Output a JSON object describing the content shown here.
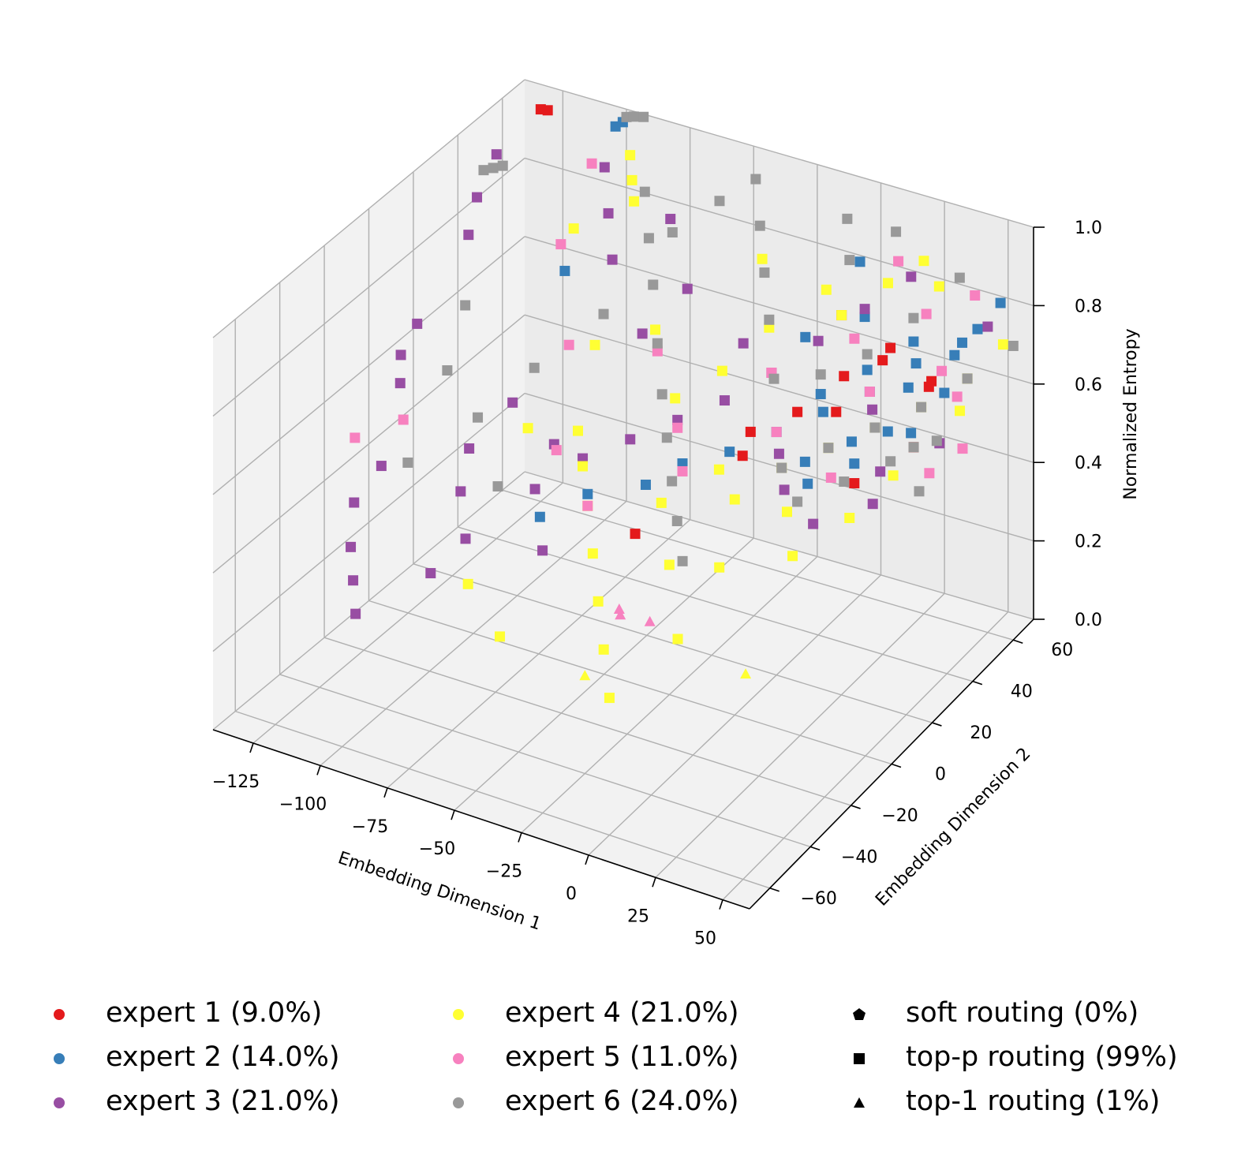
{
  "chart_data": {
    "type": "scatter",
    "projection": "3d",
    "xlabel": "Embedding Dimension 1",
    "ylabel": "Embedding Dimension 2",
    "zlabel": "Normalized Entropy",
    "x_ticks": [
      "−125",
      "−100",
      "−75",
      "−50",
      "−25",
      "0",
      "25",
      "50"
    ],
    "y_ticks": [
      "−60",
      "−40",
      "−20",
      "0",
      "20",
      "40",
      "60"
    ],
    "z_ticks": [
      "0.0",
      "0.2",
      "0.4",
      "0.6",
      "0.8",
      "1.0"
    ],
    "xlim": [
      -140,
      60
    ],
    "ylim": [
      -70,
      70
    ],
    "zlim": [
      0,
      1
    ],
    "grid": true,
    "series": [
      {
        "name": "expert 1 (9.0%)",
        "color": "#e41a1c",
        "points": [
          [
            -125,
            60,
            1.0
          ],
          [
            -124,
            62,
            0.99
          ],
          [
            35,
            50,
            0.65
          ],
          [
            40,
            45,
            0.7
          ],
          [
            20,
            50,
            0.72
          ],
          [
            10,
            40,
            0.68
          ],
          [
            0,
            30,
            0.62
          ],
          [
            -10,
            20,
            0.6
          ],
          [
            25,
            40,
            0.75
          ],
          [
            15,
            30,
            0.65
          ],
          [
            -30,
            -10,
            0.45
          ],
          [
            30,
            20,
            0.55
          ],
          [
            45,
            30,
            0.62
          ],
          [
            5,
            45,
            0.8
          ],
          [
            -5,
            10,
            0.6
          ]
        ]
      },
      {
        "name": "expert 2 (14.0%)",
        "color": "#377eb8",
        "points": [
          [
            -100,
            65,
            0.98
          ],
          [
            -98,
            66,
            0.99
          ],
          [
            -90,
            30,
            0.8
          ],
          [
            0,
            20,
            0.62
          ],
          [
            10,
            30,
            0.64
          ],
          [
            20,
            40,
            0.66
          ],
          [
            30,
            50,
            0.7
          ],
          [
            40,
            60,
            0.72
          ],
          [
            -20,
            0,
            0.6
          ],
          [
            -40,
            -20,
            0.58
          ],
          [
            5,
            35,
            0.65
          ],
          [
            15,
            45,
            0.68
          ],
          [
            25,
            55,
            0.72
          ],
          [
            35,
            40,
            0.7
          ],
          [
            45,
            50,
            0.75
          ],
          [
            -10,
            10,
            0.6
          ],
          [
            50,
            55,
            0.8
          ],
          [
            55,
            60,
            0.85
          ],
          [
            20,
            10,
            0.58
          ],
          [
            30,
            20,
            0.6
          ],
          [
            40,
            35,
            0.62
          ],
          [
            -30,
            -5,
            0.55
          ],
          [
            -50,
            -30,
            0.55
          ],
          [
            10,
            50,
            0.78
          ],
          [
            0,
            60,
            0.85
          ],
          [
            -5,
            40,
            0.75
          ],
          [
            15,
            15,
            0.6
          ],
          [
            25,
            25,
            0.62
          ],
          [
            35,
            30,
            0.64
          ],
          [
            45,
            45,
            0.68
          ]
        ]
      },
      {
        "name": "expert 3 (21.0%)",
        "color": "#984ea3",
        "points": [
          [
            -125,
            40,
            0.98
          ],
          [
            -124,
            30,
            0.92
          ],
          [
            -123,
            25,
            0.85
          ],
          [
            -130,
            10,
            0.68
          ],
          [
            -132,
            5,
            0.62
          ],
          [
            -128,
            0,
            0.58
          ],
          [
            -110,
            -30,
            0.55
          ],
          [
            -112,
            -40,
            0.5
          ],
          [
            -105,
            -50,
            0.45
          ],
          [
            -100,
            -55,
            0.4
          ],
          [
            -95,
            -60,
            0.35
          ],
          [
            -85,
            -20,
            0.6
          ],
          [
            -80,
            -30,
            0.55
          ],
          [
            -70,
            -40,
            0.5
          ],
          [
            -75,
            -50,
            0.45
          ],
          [
            -60,
            -20,
            0.55
          ],
          [
            -50,
            -10,
            0.6
          ],
          [
            -40,
            0,
            0.62
          ],
          [
            -30,
            10,
            0.64
          ],
          [
            -20,
            20,
            0.66
          ],
          [
            -10,
            30,
            0.7
          ],
          [
            0,
            40,
            0.75
          ],
          [
            10,
            50,
            0.8
          ],
          [
            20,
            60,
            0.85
          ],
          [
            -100,
            60,
            0.9
          ],
          [
            -90,
            50,
            0.85
          ],
          [
            -80,
            40,
            0.8
          ],
          [
            -70,
            55,
            0.85
          ],
          [
            50,
            60,
            0.78
          ],
          [
            40,
            20,
            0.6
          ],
          [
            30,
            0,
            0.55
          ],
          [
            45,
            10,
            0.58
          ],
          [
            55,
            30,
            0.65
          ],
          [
            -60,
            30,
            0.7
          ],
          [
            -55,
            45,
            0.75
          ],
          [
            -65,
            -5,
            0.58
          ],
          [
            -45,
            -35,
            0.5
          ],
          [
            -85,
            0,
            0.62
          ],
          [
            -25,
            35,
            0.72
          ],
          [
            5,
            15,
            0.6
          ],
          [
            15,
            5,
            0.58
          ],
          [
            25,
            35,
            0.65
          ]
        ]
      },
      {
        "name": "expert 4 (21.0%)",
        "color": "#ffff33",
        "points": [
          [
            -90,
            60,
            0.95
          ],
          [
            -85,
            55,
            0.92
          ],
          [
            -80,
            50,
            0.9
          ],
          [
            -95,
            40,
            0.85
          ],
          [
            -70,
            20,
            0.7
          ],
          [
            -60,
            0,
            0.6
          ],
          [
            -50,
            -10,
            0.58
          ],
          [
            -40,
            -20,
            0.55
          ],
          [
            -30,
            -30,
            0.5
          ],
          [
            -20,
            -40,
            0.45
          ],
          [
            -10,
            -50,
            0.4
          ],
          [
            0,
            -60,
            0.35
          ],
          [
            -65,
            -45,
            0.42
          ],
          [
            -45,
            -55,
            0.38
          ],
          [
            10,
            10,
            0.6
          ],
          [
            20,
            20,
            0.62
          ],
          [
            30,
            30,
            0.64
          ],
          [
            40,
            40,
            0.66
          ],
          [
            50,
            50,
            0.7
          ],
          [
            5,
            45,
            0.8
          ],
          [
            15,
            55,
            0.85
          ],
          [
            25,
            60,
            0.9
          ],
          [
            35,
            55,
            0.88
          ],
          [
            -15,
            35,
            0.78
          ],
          [
            -5,
            50,
            0.82
          ],
          [
            -25,
            25,
            0.7
          ],
          [
            -35,
            15,
            0.66
          ],
          [
            45,
            20,
            0.6
          ],
          [
            55,
            40,
            0.68
          ],
          [
            0,
            0,
            0.55
          ],
          [
            10,
            -20,
            0.5
          ],
          [
            -10,
            5,
            0.58
          ],
          [
            20,
            0,
            0.56
          ],
          [
            30,
            -10,
            0.52
          ],
          [
            -75,
            -5,
            0.6
          ],
          [
            -55,
            30,
            0.72
          ],
          [
            -30,
            50,
            0.85
          ],
          [
            60,
            55,
            0.78
          ],
          [
            10,
            -40,
            0.42
          ],
          [
            -5,
            -25,
            0.5
          ],
          [
            40,
            5,
            0.56
          ],
          [
            -20,
            -10,
            0.55
          ]
        ]
      },
      {
        "name": "expert 5 (11.0%)",
        "color": "#f781bf",
        "points": [
          [
            -105,
            60,
            0.9
          ],
          [
            -100,
            40,
            0.8
          ],
          [
            -110,
            -20,
            0.62
          ],
          [
            -120,
            -30,
            0.6
          ],
          [
            -80,
            20,
            0.68
          ],
          [
            -60,
            -10,
            0.6
          ],
          [
            -40,
            -20,
            0.55
          ],
          [
            -20,
            0,
            0.58
          ],
          [
            0,
            20,
            0.62
          ],
          [
            20,
            40,
            0.66
          ],
          [
            40,
            50,
            0.7
          ],
          [
            50,
            45,
            0.68
          ],
          [
            30,
            55,
            0.8
          ],
          [
            10,
            45,
            0.75
          ],
          [
            -10,
            30,
            0.7
          ],
          [
            -30,
            10,
            0.62
          ],
          [
            -50,
            25,
            0.7
          ],
          [
            55,
            25,
            0.6
          ],
          [
            60,
            35,
            0.62
          ],
          [
            45,
            60,
            0.85
          ],
          [
            25,
            15,
            0.58
          ],
          [
            15,
            60,
            0.88
          ]
        ]
      },
      {
        "name": "expert 6 (24.0%)",
        "color": "#999999",
        "points": [
          [
            -130,
            40,
            0.93
          ],
          [
            -128,
            42,
            0.93
          ],
          [
            -126,
            44,
            0.93
          ],
          [
            -100,
            70,
            0.98
          ],
          [
            -98,
            71,
            0.98
          ],
          [
            -95,
            72,
            0.98
          ],
          [
            -80,
            55,
            0.9
          ],
          [
            -70,
            45,
            0.85
          ],
          [
            -60,
            35,
            0.8
          ],
          [
            -50,
            25,
            0.72
          ],
          [
            -40,
            15,
            0.66
          ],
          [
            -30,
            5,
            0.62
          ],
          [
            -20,
            -5,
            0.58
          ],
          [
            -10,
            -15,
            0.55
          ],
          [
            0,
            -25,
            0.52
          ],
          [
            10,
            10,
            0.6
          ],
          [
            20,
            20,
            0.62
          ],
          [
            30,
            30,
            0.64
          ],
          [
            40,
            40,
            0.66
          ],
          [
            50,
            50,
            0.7
          ],
          [
            60,
            60,
            0.75
          ],
          [
            -90,
            -10,
            0.62
          ],
          [
            -100,
            -30,
            0.58
          ],
          [
            -85,
            10,
            0.66
          ],
          [
            -75,
            30,
            0.72
          ],
          [
            -65,
            50,
            0.85
          ],
          [
            -55,
            60,
            0.9
          ],
          [
            -45,
            65,
            0.95
          ],
          [
            -35,
            55,
            0.9
          ],
          [
            -25,
            45,
            0.85
          ],
          [
            -15,
            35,
            0.8
          ],
          [
            -5,
            25,
            0.72
          ],
          [
            5,
            35,
            0.7
          ],
          [
            15,
            45,
            0.72
          ],
          [
            25,
            55,
            0.78
          ],
          [
            35,
            65,
            0.85
          ],
          [
            45,
            30,
            0.62
          ],
          [
            55,
            20,
            0.58
          ],
          [
            0,
            55,
            0.88
          ],
          [
            10,
            65,
            0.92
          ],
          [
            -5,
            60,
            0.95
          ],
          [
            20,
            5,
            0.56
          ],
          [
            30,
            15,
            0.58
          ],
          [
            40,
            25,
            0.6
          ],
          [
            50,
            35,
            0.62
          ],
          [
            -120,
            20,
            0.7
          ],
          [
            -110,
            0,
            0.65
          ],
          [
            -70,
            -25,
            0.56
          ]
        ]
      }
    ],
    "triangle_points": [
      {
        "color": "#f781bf",
        "points": [
          [
            -20,
            -30,
            0.38
          ],
          [
            -18,
            -32,
            0.38
          ],
          [
            -10,
            -28,
            0.36
          ]
        ]
      },
      {
        "color": "#ffff33",
        "points": [
          [
            -25,
            -40,
            0.25
          ],
          [
            20,
            -20,
            0.25
          ]
        ]
      }
    ],
    "legend_location": "below",
    "legend": {
      "col1": [
        {
          "label": "expert 1 (9.0%)",
          "color": "#e41a1c",
          "shape": "circle"
        },
        {
          "label": "expert 2 (14.0%)",
          "color": "#377eb8",
          "shape": "circle"
        },
        {
          "label": "expert 3 (21.0%)",
          "color": "#984ea3",
          "shape": "circle"
        }
      ],
      "col2": [
        {
          "label": "expert 4 (21.0%)",
          "color": "#ffff33",
          "shape": "circle"
        },
        {
          "label": "expert 5 (11.0%)",
          "color": "#f781bf",
          "shape": "circle"
        },
        {
          "label": "expert 6 (24.0%)",
          "color": "#999999",
          "shape": "circle"
        }
      ],
      "col3": [
        {
          "label": "soft routing (0%)",
          "color": "#000000",
          "shape": "pentagon"
        },
        {
          "label": "top-p routing (99%)",
          "color": "#000000",
          "shape": "square"
        },
        {
          "label": "top-1 routing (1%)",
          "color": "#000000",
          "shape": "triangle"
        }
      ]
    }
  }
}
